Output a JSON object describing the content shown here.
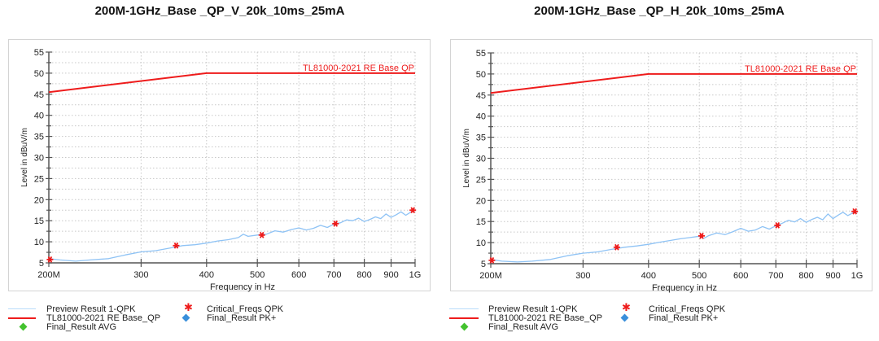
{
  "chart_data": [
    {
      "type": "line",
      "title": "200M-1GHz_Base _QP_V_20k_10ms_25mA",
      "xlabel": "Frequency in Hz",
      "ylabel": "Level in dBuV/m",
      "xscale": "log",
      "xlim": [
        200,
        1000
      ],
      "ylim": [
        5,
        55
      ],
      "grid": true,
      "xticks": [
        200,
        300,
        400,
        500,
        600,
        700,
        800,
        900,
        1000
      ],
      "xtick_labels": [
        "200M",
        "300",
        "400",
        "500",
        "600",
        "700",
        "800",
        "900",
        "1G"
      ],
      "yticks": [
        5,
        10,
        15,
        20,
        25,
        30,
        35,
        40,
        45,
        50,
        55
      ],
      "ytick_labels": [
        "5",
        "10",
        "15",
        "20",
        "25",
        "30",
        "35",
        "40",
        "45",
        "50",
        "55"
      ],
      "limit_label": "TL81000-2021  RE Base  QP",
      "series": [
        {
          "name": "Preview Result 1-QPK",
          "color": "#8fc3f5",
          "x": [
            200,
            210,
            225,
            240,
            260,
            280,
            300,
            320,
            340,
            360,
            380,
            400,
            420,
            440,
            460,
            470,
            480,
            500,
            520,
            540,
            560,
            580,
            600,
            620,
            640,
            660,
            680,
            700,
            720,
            740,
            760,
            780,
            800,
            820,
            840,
            860,
            880,
            900,
            920,
            940,
            960,
            980,
            1000
          ],
          "y": [
            6.0,
            5.7,
            5.4,
            5.7,
            6.0,
            6.9,
            7.6,
            7.9,
            8.5,
            9.1,
            9.3,
            9.7,
            10.2,
            10.5,
            11.0,
            11.8,
            11.3,
            11.6,
            11.8,
            12.6,
            12.3,
            12.9,
            13.3,
            12.8,
            13.2,
            13.9,
            13.4,
            14.2,
            14.5,
            15.2,
            15.0,
            15.6,
            14.8,
            15.3,
            15.9,
            15.5,
            16.6,
            15.8,
            16.4,
            17.1,
            16.3,
            17.0,
            17.5
          ]
        },
        {
          "name": "TL81000-2021  RE Base_QP",
          "color": "#ee1c1c",
          "x": [
            200,
            400,
            1000
          ],
          "y": [
            45.5,
            50,
            50
          ]
        },
        {
          "name": "Critical_Freqs QPK",
          "color": "#ee1c1c",
          "marker": "star",
          "x": [
            201,
            350,
            510,
            705,
            990
          ],
          "y": [
            5.8,
            9.1,
            11.6,
            14.3,
            17.5
          ]
        },
        {
          "name": "Final_Result AVG",
          "color": "#43c22e",
          "marker": "diamond",
          "x": [],
          "y": []
        },
        {
          "name": "Final_Result PK+",
          "color": "#3a8fdb",
          "marker": "diamond",
          "x": [],
          "y": []
        }
      ]
    },
    {
      "type": "line",
      "title": "200M-1GHz_Base _QP_H_20k_10ms_25mA",
      "xlabel": "Frequency in Hz",
      "ylabel": "Level in dBuV/m",
      "xscale": "log",
      "xlim": [
        200,
        1000
      ],
      "ylim": [
        5,
        55
      ],
      "grid": true,
      "xticks": [
        200,
        300,
        400,
        500,
        600,
        700,
        800,
        900,
        1000
      ],
      "xtick_labels": [
        "200M",
        "300",
        "400",
        "500",
        "600",
        "700",
        "800",
        "900",
        "1G"
      ],
      "yticks": [
        5,
        10,
        15,
        20,
        25,
        30,
        35,
        40,
        45,
        50,
        55
      ],
      "ytick_labels": [
        "5",
        "10",
        "15",
        "20",
        "25",
        "30",
        "35",
        "40",
        "45",
        "50",
        "55"
      ],
      "limit_label": "TL81000-2021  RE Base  QP",
      "series": [
        {
          "name": "Preview Result 1-QPK",
          "color": "#8fc3f5",
          "x": [
            200,
            210,
            225,
            240,
            260,
            280,
            300,
            320,
            340,
            360,
            380,
            400,
            420,
            440,
            460,
            480,
            500,
            510,
            520,
            540,
            560,
            580,
            600,
            620,
            640,
            660,
            680,
            700,
            720,
            740,
            760,
            780,
            800,
            820,
            840,
            860,
            880,
            900,
            920,
            940,
            960,
            980,
            1000
          ],
          "y": [
            6.0,
            5.6,
            5.4,
            5.6,
            6.0,
            6.9,
            7.5,
            7.8,
            8.4,
            8.9,
            9.2,
            9.6,
            10.1,
            10.5,
            10.9,
            11.2,
            11.5,
            11.0,
            11.6,
            12.3,
            11.9,
            12.6,
            13.4,
            12.7,
            13.0,
            13.8,
            13.2,
            14.0,
            14.6,
            15.3,
            14.9,
            15.7,
            14.8,
            15.5,
            16.0,
            15.4,
            16.8,
            15.7,
            16.5,
            17.2,
            16.4,
            17.0,
            17.3
          ]
        },
        {
          "name": "TL81000-2021  RE Base_QP",
          "color": "#ee1c1c",
          "x": [
            200,
            400,
            1000
          ],
          "y": [
            45.5,
            50,
            50
          ]
        },
        {
          "name": "Critical_Freqs QPK",
          "color": "#ee1c1c",
          "marker": "star",
          "x": [
            201,
            348,
            505,
            705,
            990
          ],
          "y": [
            5.8,
            8.9,
            11.6,
            14.1,
            17.4
          ]
        },
        {
          "name": "Final_Result AVG",
          "color": "#43c22e",
          "marker": "diamond",
          "x": [],
          "y": []
        },
        {
          "name": "Final_Result PK+",
          "color": "#3a8fdb",
          "marker": "diamond",
          "x": [],
          "y": []
        }
      ]
    }
  ],
  "legend": {
    "preview": "Preview Result 1-QPK",
    "limit": "TL81000-2021  RE Base_QP",
    "avg": "Final_Result AVG",
    "critical": "Critical_Freqs QPK",
    "pk": "Final_Result PK+"
  },
  "colors": {
    "preview": "#8fc3f5",
    "limit": "#ee1c1c",
    "critical": "#ee1c1c",
    "avg": "#43c22e",
    "pk": "#3a8fdb",
    "grid": "#c8c8c8",
    "axis": "#555555"
  }
}
